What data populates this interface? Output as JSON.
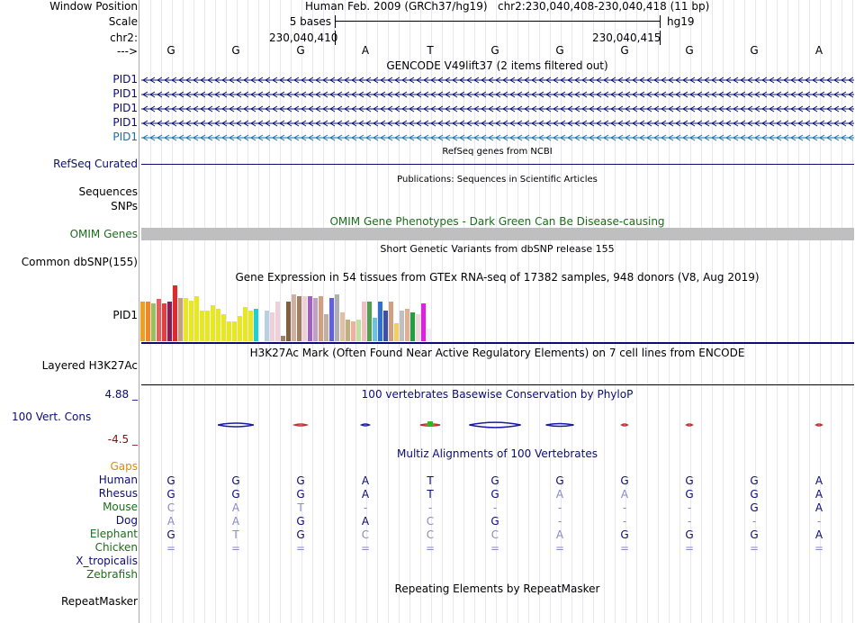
{
  "header": {
    "window_position_label": "Window Position",
    "assembly": "Human Feb. 2009 (GRCh37/hg19)",
    "position": "chr2:230,040,408-230,040,418 (11 bp)",
    "scale_label": "Scale",
    "scale_bar_text": "5 bases",
    "scale_db": "hg19",
    "chrom_label": "chr2:",
    "coord_left": "230,040,410",
    "coord_right": "230,040,415",
    "strand_label": "--->"
  },
  "bases": [
    "G",
    "G",
    "G",
    "A",
    "T",
    "G",
    "G",
    "G",
    "G",
    "G",
    "A"
  ],
  "gencode": {
    "title": "GENCODE V49lift37 (2 items filtered out)",
    "tracks": [
      "PID1",
      "PID1",
      "PID1",
      "PID1",
      "PID1"
    ],
    "colors": [
      "#0c0c78",
      "#0c0c78",
      "#0c0c78",
      "#0c0c78",
      "#1a6ea8"
    ]
  },
  "refseq": {
    "title": "RefSeq genes from NCBI",
    "label": "RefSeq Curated"
  },
  "publications": {
    "title": "Publications: Sequences in Scientific Articles",
    "label1": "Sequences",
    "label2": "SNPs"
  },
  "omim": {
    "title": "OMIM Gene Phenotypes - Dark Green Can Be Disease-causing",
    "label": "OMIM Genes",
    "color": "#1b6e1b"
  },
  "dbsnp": {
    "title": "Short Genetic Variants from dbSNP release 155",
    "label": "Common dbSNP(155)"
  },
  "gtex": {
    "title": "Gene Expression in 54 tissues from GTEx RNA-seq of 17382 samples, 948 donors (V8, Aug 2019)",
    "label": "PID1",
    "values": [
      44,
      44,
      42,
      47,
      42,
      44,
      62,
      48,
      48,
      45,
      50,
      34,
      34,
      40,
      36,
      30,
      22,
      22,
      28,
      38,
      34,
      36,
      32,
      34,
      32,
      44,
      6,
      44,
      52,
      50,
      50,
      50,
      48,
      50,
      30,
      48,
      52,
      32,
      24,
      22,
      24,
      44,
      44,
      26,
      44,
      34,
      44,
      20,
      34,
      36,
      32,
      30,
      42,
      14
    ],
    "colors": [
      "#f0a020",
      "#f08a20",
      "#98c060",
      "#e06060",
      "#e04040",
      "#8a1c5a",
      "#e02a2a",
      "#c0a080",
      "#e8e820",
      "#e8e820",
      "#e8e820",
      "#e8e820",
      "#e8e820",
      "#e8e820",
      "#e8e820",
      "#e8e820",
      "#e8e820",
      "#e8e820",
      "#e8e820",
      "#e8e820",
      "#e8e820",
      "#20d0d0",
      "#ffffff",
      "#b8d0e0",
      "#f0d0d8",
      "#f0d0d8",
      "#a08060",
      "#806040",
      "#d0b0a0",
      "#a08060",
      "#f0d0d8",
      "#a060c0",
      "#c0a0c0",
      "#d0a080",
      "#c0b0a0",
      "#6060e0",
      "#b0b0b0",
      "#e0c0a0",
      "#c0b080",
      "#f0b0a0",
      "#c0e0a0",
      "#f0c0c0",
      "#50a050",
      "#70c0e0",
      "#3070d0",
      "#4050a0",
      "#d0a080",
      "#f0d060",
      "#c0c0c0",
      "#e0b090",
      "#20a040",
      "#f0d8d8",
      "#e020e0",
      "#f0f0f0"
    ],
    "bar_width": 5
  },
  "h3k27ac": {
    "title": "H3K27Ac Mark (Often Found Near Active Regulatory Elements) on 7 cell lines from ENCODE",
    "label": "Layered H3K27Ac"
  },
  "phylop": {
    "title": "100 vertebrates Basewise Conservation by PhyloP",
    "label": "100 Vert. Cons",
    "max_label": "4.88 _",
    "min_label": "-4.5 _",
    "scores": [
      0.0,
      1.8,
      -0.6,
      0.4,
      -1.0,
      2.6,
      1.4,
      -0.3,
      -0.3,
      0.0,
      -0.3
    ]
  },
  "multiz": {
    "title": "Multiz Alignments of 100 Vertebrates",
    "gaps_label": "Gaps",
    "species": [
      {
        "name": "Human",
        "color": "#0c0c78",
        "bases": [
          "G",
          "G",
          "G",
          "A",
          "T",
          "G",
          "G",
          "G",
          "G",
          "G",
          "A"
        ]
      },
      {
        "name": "Rhesus",
        "color": "#0c0c78",
        "bases": [
          "G",
          "G",
          "G",
          "A",
          "T",
          "G",
          "A",
          "A",
          "G",
          "G",
          "A"
        ]
      },
      {
        "name": "Mouse",
        "color": "#1b6e1b",
        "bases": [
          "C",
          "A",
          "T",
          "-",
          "-",
          "-",
          "-",
          "-",
          "-",
          "G",
          "A"
        ]
      },
      {
        "name": "Dog",
        "color": "#0c0c78",
        "bases": [
          "A",
          "A",
          "G",
          "A",
          "C",
          "G",
          "-",
          "-",
          "-",
          "-",
          "-"
        ]
      },
      {
        "name": "Elephant",
        "color": "#1b6e1b",
        "bases": [
          "G",
          "T",
          "G",
          "C",
          "C",
          "C",
          "A",
          "G",
          "G",
          "G",
          "A"
        ]
      },
      {
        "name": "Chicken",
        "color": "#1b6e1b",
        "bases": [
          "=",
          "=",
          "=",
          "=",
          "=",
          "=",
          "=",
          "=",
          "=",
          "=",
          "="
        ]
      },
      {
        "name": "X_tropicalis",
        "color": "#0c0c78",
        "bases": []
      },
      {
        "name": "Zebrafish",
        "color": "#1b6e1b",
        "bases": []
      }
    ]
  },
  "repeatmasker": {
    "title": "Repeating Elements by RepeatMasker",
    "label": "RepeatMasker"
  }
}
